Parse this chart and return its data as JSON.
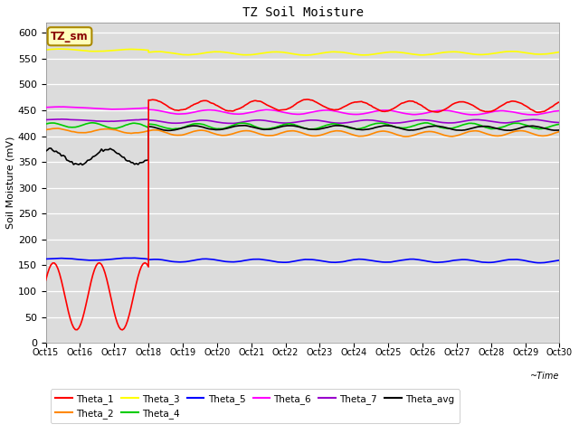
{
  "title": "TZ Soil Moisture",
  "ylabel": "Soil Moisture (mV)",
  "xlabel": "~Time",
  "label_box": "TZ_sm",
  "x_tick_labels": [
    "Oct 15",
    "Oct 16",
    "Oct 17",
    "Oct 18",
    "Oct 19",
    "Oct 20",
    "Oct 21",
    "Oct 22",
    "Oct 23",
    "Oct 24",
    "Oct 25",
    "Oct 26",
    "Oct 27",
    "Oct 28",
    "Oct 29",
    "Oct 30"
  ],
  "ylim": [
    0,
    620
  ],
  "yticks": [
    0,
    50,
    100,
    150,
    200,
    250,
    300,
    350,
    400,
    450,
    500,
    550,
    600
  ],
  "background_color": "#dcdcdc",
  "series": {
    "Theta_1": {
      "color": "#ff0000",
      "lw": 1.2
    },
    "Theta_2": {
      "color": "#ff8800",
      "lw": 1.2
    },
    "Theta_3": {
      "color": "#ffff00",
      "lw": 1.2
    },
    "Theta_4": {
      "color": "#00cc00",
      "lw": 1.2
    },
    "Theta_5": {
      "color": "#0000ff",
      "lw": 1.2
    },
    "Theta_6": {
      "color": "#ff00ff",
      "lw": 1.2
    },
    "Theta_7": {
      "color": "#9900cc",
      "lw": 1.2
    },
    "Theta_avg": {
      "color": "#000000",
      "lw": 1.2
    }
  }
}
